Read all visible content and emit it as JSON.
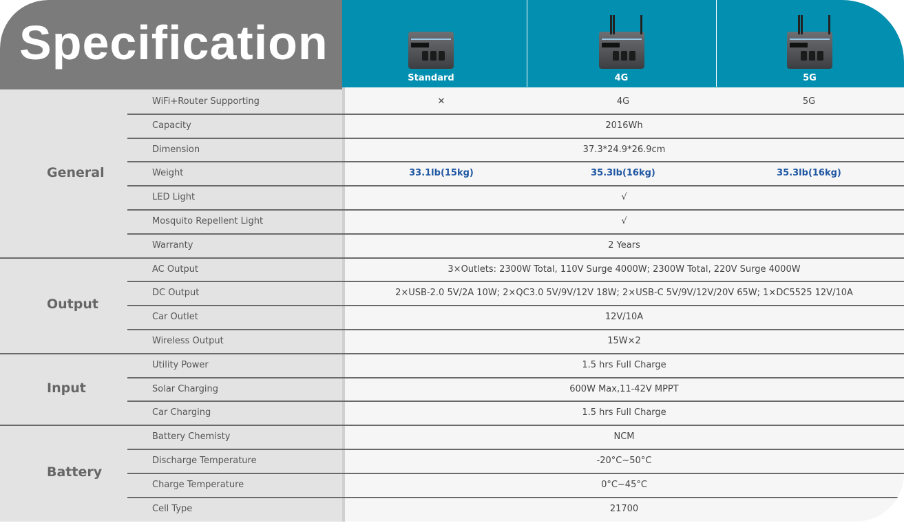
{
  "header": {
    "title": "Specification",
    "models": [
      {
        "name": "Standard",
        "antennas": false
      },
      {
        "name": "4G",
        "antennas": true
      },
      {
        "name": "5G",
        "antennas": true
      }
    ]
  },
  "colors": {
    "header_teal": "#028fb0",
    "header_gray": "#7b7b7b",
    "highlight_blue": "#1f57a3"
  },
  "sections": [
    {
      "name": "General",
      "rows": [
        {
          "label": "WiFi+Router Supporting",
          "values": [
            "✕",
            "4G",
            "5G"
          ]
        },
        {
          "label": "Capacity",
          "value": "2016Wh"
        },
        {
          "label": "Dimension",
          "value": "37.3*24.9*26.9cm"
        },
        {
          "label": "Weight",
          "values": [
            "33.1lb(15kg)",
            "35.3lb(16kg)",
            "35.3lb(16kg)"
          ],
          "highlight": true
        },
        {
          "label": "LED Light",
          "value": "√"
        },
        {
          "label": "Mosquito Repellent Light",
          "value": "√"
        },
        {
          "label": "Warranty",
          "value": "2 Years"
        }
      ]
    },
    {
      "name": "Output",
      "rows": [
        {
          "label": "AC Output",
          "value": "3×Outlets:  2300W Total, 110V Surge 4000W; 2300W Total, 220V Surge 4000W"
        },
        {
          "label": "DC Output",
          "value": "2×USB-2.0 5V/2A 10W; 2×QC3.0  5V/9V/12V 18W; 2×USB-C 5V/9V/12V/20V 65W; 1×DC5525 12V/10A"
        },
        {
          "label": "Car Outlet",
          "value": "12V/10A"
        },
        {
          "label": "Wireless Output",
          "value": "15W×2"
        }
      ]
    },
    {
      "name": "Input",
      "rows": [
        {
          "label": "Utility Power",
          "value": "1.5 hrs Full Charge"
        },
        {
          "label": "Solar Charging",
          "value": "600W Max,11-42V MPPT"
        },
        {
          "label": "Car Charging",
          "value": "1.5 hrs Full Charge"
        }
      ]
    },
    {
      "name": "Battery",
      "rows": [
        {
          "label": "Battery Chemisty",
          "value": "NCM"
        },
        {
          "label": "Discharge Temperature",
          "value": "-20°C~50°C"
        },
        {
          "label": "Charge Temperature",
          "value": "0°C~45°C"
        },
        {
          "label": "Cell Type",
          "value": "21700"
        }
      ]
    }
  ]
}
